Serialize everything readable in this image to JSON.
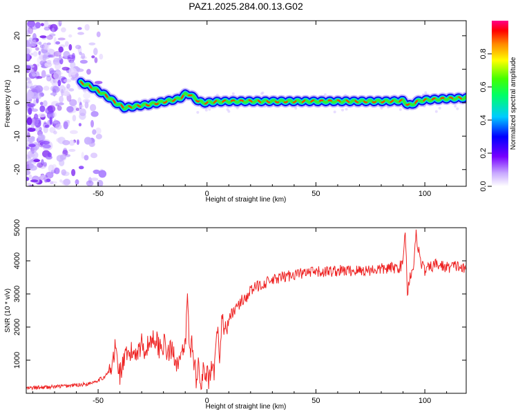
{
  "title": "PAZ1.2025.284.00.13.G02",
  "chart_data": [
    {
      "type": "heatmap",
      "xlabel": "Height of straight line (km)",
      "ylabel": "Frequency (Hz)",
      "xlim": [
        -83,
        119
      ],
      "ylim": [
        -25,
        24.5
      ],
      "xticks": [
        -50,
        0,
        50,
        100
      ],
      "yticks": [
        -20,
        -10,
        0,
        10,
        20
      ],
      "xtick_labels": [
        "-50",
        "0",
        "50",
        "100"
      ],
      "ytick_labels": [
        "-20",
        "-10",
        "0",
        "10",
        "20"
      ],
      "ridge": {
        "x": [
          -58,
          -54,
          -50,
          -46,
          -42,
          -38,
          -34,
          -30,
          -26,
          -22,
          -18,
          -14,
          -12,
          -10,
          -8,
          -6,
          -4,
          -2,
          0,
          4,
          10,
          20,
          30,
          40,
          50,
          60,
          70,
          80,
          88,
          90,
          92,
          94,
          96,
          100,
          110,
          119
        ],
        "y": [
          6,
          5,
          3.5,
          2,
          0,
          -1.5,
          -1.2,
          -0.8,
          -0.5,
          0,
          0.5,
          1,
          1.5,
          2.5,
          2.5,
          1.5,
          0.5,
          0,
          0,
          0.3,
          0.4,
          0.4,
          0.4,
          0.4,
          0.4,
          0.4,
          0.4,
          0.4,
          0.5,
          0.6,
          -0.5,
          -0.8,
          0.3,
          0.8,
          1.2,
          1.4
        ]
      },
      "noise_region_x": [
        -83,
        -48
      ],
      "colorbar": {
        "label": "Normalized spectral amplitude",
        "range": [
          0,
          1
        ],
        "ticks": [
          0.0,
          0.2,
          0.4,
          0.6,
          0.8
        ],
        "tick_labels": [
          "0.0",
          "0.2",
          "0.4",
          "0.6",
          "0.8"
        ]
      }
    },
    {
      "type": "line",
      "xlabel": "Height of straight line (km)",
      "ylabel": "SNR (10 * v/v)",
      "xlim": [
        -83,
        119
      ],
      "ylim": [
        0,
        5000
      ],
      "xticks": [
        -50,
        0,
        50,
        100
      ],
      "yticks": [
        1000,
        2000,
        3000,
        4000,
        5000
      ],
      "xtick_labels": [
        "-50",
        "0",
        "50",
        "100"
      ],
      "ytick_labels": [
        "1000",
        "2000",
        "3000",
        "4000",
        "5000"
      ],
      "series": [
        {
          "color": "#ee2222",
          "x": [
            -83,
            -75,
            -65,
            -55,
            -48,
            -44,
            -42,
            -41,
            -40,
            -38,
            -35,
            -32,
            -30,
            -28,
            -26,
            -24,
            -22,
            -20,
            -18,
            -16,
            -14,
            -12,
            -10,
            -9,
            -8,
            -7,
            -6,
            -5,
            -4,
            -3,
            -2,
            -1,
            0,
            1,
            2,
            3,
            4,
            5,
            6,
            7,
            8,
            10,
            12,
            14,
            16,
            18,
            20,
            25,
            30,
            35,
            40,
            50,
            60,
            70,
            80,
            88,
            90,
            91,
            92,
            93,
            95,
            96,
            98,
            100,
            105,
            110,
            115,
            119
          ],
          "y": [
            150,
            180,
            220,
            280,
            450,
            700,
            1400,
            900,
            600,
            1000,
            1200,
            1300,
            1500,
            1300,
            1600,
            1700,
            1400,
            1500,
            1200,
            1300,
            1000,
            1000,
            1400,
            2900,
            1300,
            1500,
            1000,
            500,
            900,
            200,
            700,
            400,
            600,
            300,
            700,
            500,
            1200,
            2000,
            1000,
            2500,
            1800,
            2200,
            2500,
            2600,
            2800,
            2900,
            3100,
            3300,
            3400,
            3500,
            3600,
            3650,
            3700,
            3700,
            3750,
            3800,
            3900,
            5000,
            3000,
            3500,
            3900,
            4800,
            4000,
            3700,
            3900,
            3800,
            3850,
            3700
          ]
        }
      ]
    }
  ]
}
